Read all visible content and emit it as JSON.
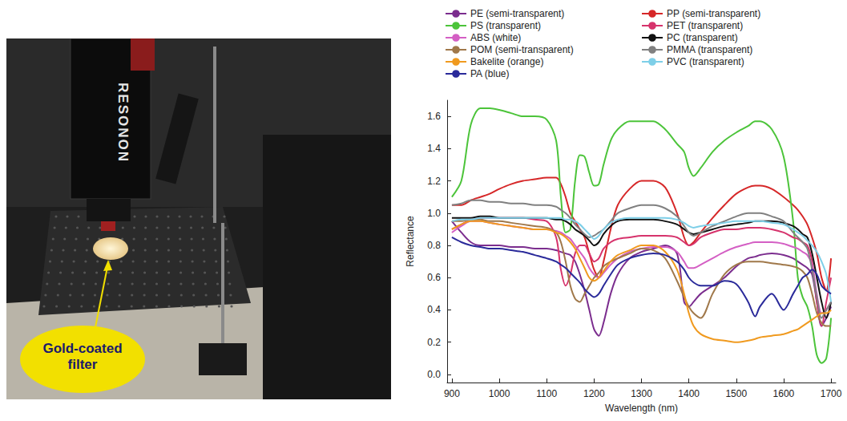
{
  "photo": {
    "camera_label": "RESONON",
    "annotation": "Gold-coated filter"
  },
  "chart_data": {
    "type": "line",
    "x_label": "Wavelength (nm)",
    "y_label": "Reflectance",
    "xlim": [
      890,
      1710
    ],
    "ylim": [
      -0.05,
      1.7
    ],
    "xticks": [
      900,
      1000,
      1100,
      1200,
      1300,
      1400,
      1500,
      1600,
      1700
    ],
    "yticks": [
      {
        "value": 0,
        "label": "0.0"
      },
      0.2,
      0.4,
      0.6,
      0.8,
      {
        "value": 1,
        "label": "1.0"
      },
      1.2,
      1.4,
      1.6
    ],
    "grid": false,
    "legend": "top",
    "x": [
      900,
      920,
      940,
      960,
      980,
      1000,
      1025,
      1050,
      1075,
      1100,
      1120,
      1130,
      1140,
      1150,
      1160,
      1170,
      1180,
      1190,
      1200,
      1210,
      1220,
      1235,
      1250,
      1275,
      1300,
      1325,
      1350,
      1375,
      1390,
      1400,
      1410,
      1425,
      1450,
      1475,
      1500,
      1525,
      1540,
      1550,
      1575,
      1600,
      1620,
      1630,
      1640,
      1650,
      1660,
      1670,
      1680,
      1690,
      1700
    ],
    "series": [
      {
        "name": "PE (semi-transparent)",
        "color": "#7b2d8e",
        "values": [
          0.95,
          0.88,
          0.82,
          0.8,
          0.8,
          0.8,
          0.79,
          0.79,
          0.78,
          0.78,
          0.77,
          0.76,
          0.75,
          0.74,
          0.7,
          0.62,
          0.52,
          0.4,
          0.28,
          0.24,
          0.32,
          0.5,
          0.62,
          0.72,
          0.76,
          0.78,
          0.8,
          0.75,
          0.45,
          0.42,
          0.45,
          0.5,
          0.55,
          0.6,
          0.67,
          0.72,
          0.73,
          0.74,
          0.75,
          0.74,
          0.72,
          0.7,
          0.68,
          0.66,
          0.62,
          0.45,
          0.3,
          0.35,
          0.42
        ]
      },
      {
        "name": "PP (semi-transparent)",
        "color": "#d62728",
        "values": [
          1.05,
          1.05,
          1.08,
          1.1,
          1.12,
          1.15,
          1.18,
          1.2,
          1.21,
          1.22,
          1.22,
          1.18,
          1.1,
          1.0,
          0.95,
          0.9,
          0.85,
          0.75,
          0.65,
          0.6,
          0.7,
          0.9,
          1.05,
          1.15,
          1.2,
          1.2,
          1.16,
          1.0,
          0.85,
          0.8,
          0.82,
          0.88,
          0.97,
          1.05,
          1.12,
          1.16,
          1.17,
          1.17,
          1.15,
          1.1,
          1.05,
          1.02,
          0.98,
          0.93,
          0.85,
          0.75,
          0.6,
          0.52,
          0.72
        ]
      },
      {
        "name": "PS (transparent)",
        "color": "#4cc43a",
        "values": [
          1.1,
          1.2,
          1.55,
          1.65,
          1.65,
          1.64,
          1.62,
          1.6,
          1.6,
          1.58,
          1.45,
          1.1,
          0.88,
          0.9,
          1.2,
          1.36,
          1.35,
          1.25,
          1.17,
          1.18,
          1.3,
          1.45,
          1.52,
          1.57,
          1.57,
          1.57,
          1.52,
          1.43,
          1.38,
          1.28,
          1.23,
          1.28,
          1.38,
          1.45,
          1.5,
          1.54,
          1.57,
          1.57,
          1.52,
          1.35,
          0.95,
          0.6,
          0.48,
          0.42,
          0.3,
          0.12,
          0.07,
          0.1,
          0.35
        ]
      },
      {
        "name": "PET (transparent)",
        "color": "#d6336c",
        "values": [
          0.9,
          0.93,
          0.96,
          0.97,
          0.97,
          0.97,
          0.97,
          0.97,
          0.96,
          0.95,
          0.85,
          0.65,
          0.55,
          0.62,
          0.75,
          0.8,
          0.8,
          0.75,
          0.7,
          0.72,
          0.78,
          0.82,
          0.84,
          0.85,
          0.86,
          0.86,
          0.86,
          0.85,
          0.82,
          0.8,
          0.81,
          0.85,
          0.88,
          0.9,
          0.9,
          0.91,
          0.91,
          0.91,
          0.9,
          0.88,
          0.85,
          0.84,
          0.82,
          0.8,
          0.7,
          0.45,
          0.3,
          0.45,
          0.6
        ]
      },
      {
        "name": "ABS (white)",
        "color": "#d45fc4",
        "values": [
          0.88,
          0.92,
          0.95,
          0.95,
          0.94,
          0.93,
          0.92,
          0.91,
          0.9,
          0.9,
          0.89,
          0.88,
          0.86,
          0.84,
          0.8,
          0.76,
          0.72,
          0.66,
          0.62,
          0.6,
          0.63,
          0.68,
          0.72,
          0.76,
          0.78,
          0.79,
          0.79,
          0.76,
          0.7,
          0.66,
          0.66,
          0.68,
          0.72,
          0.76,
          0.79,
          0.81,
          0.82,
          0.82,
          0.82,
          0.81,
          0.79,
          0.78,
          0.76,
          0.74,
          0.68,
          0.5,
          0.38,
          0.4,
          0.45
        ]
      },
      {
        "name": "PC (transparent)",
        "color": "#111111",
        "values": [
          0.97,
          0.97,
          0.97,
          0.98,
          0.98,
          0.97,
          0.97,
          0.97,
          0.97,
          0.97,
          0.96,
          0.96,
          0.95,
          0.93,
          0.9,
          0.88,
          0.86,
          0.83,
          0.8,
          0.82,
          0.87,
          0.92,
          0.95,
          0.96,
          0.96,
          0.96,
          0.95,
          0.93,
          0.9,
          0.88,
          0.87,
          0.88,
          0.9,
          0.92,
          0.93,
          0.94,
          0.95,
          0.95,
          0.95,
          0.94,
          0.92,
          0.9,
          0.87,
          0.85,
          0.75,
          0.6,
          0.45,
          0.35,
          0.45
        ]
      },
      {
        "name": "POM (semi-transparent)",
        "color": "#a0784a",
        "values": [
          0.95,
          0.95,
          0.96,
          0.96,
          0.95,
          0.95,
          0.94,
          0.93,
          0.92,
          0.91,
          0.88,
          0.82,
          0.7,
          0.55,
          0.47,
          0.45,
          0.5,
          0.55,
          0.6,
          0.63,
          0.67,
          0.7,
          0.72,
          0.75,
          0.78,
          0.77,
          0.72,
          0.58,
          0.48,
          0.42,
          0.38,
          0.35,
          0.5,
          0.62,
          0.68,
          0.7,
          0.7,
          0.7,
          0.69,
          0.68,
          0.67,
          0.66,
          0.64,
          0.6,
          0.5,
          0.38,
          0.32,
          0.3,
          0.3
        ]
      },
      {
        "name": "PMMA (transparent)",
        "color": "#808080",
        "values": [
          1.05,
          1.06,
          1.08,
          1.08,
          1.07,
          1.07,
          1.06,
          1.06,
          1.05,
          1.05,
          1.04,
          1.02,
          1.0,
          0.97,
          0.93,
          0.9,
          0.87,
          0.85,
          0.86,
          0.88,
          0.9,
          0.95,
          1.0,
          1.03,
          1.05,
          1.05,
          1.03,
          0.98,
          0.92,
          0.88,
          0.86,
          0.88,
          0.92,
          0.95,
          0.98,
          1.0,
          1.0,
          1.0,
          0.98,
          0.95,
          0.88,
          0.85,
          0.82,
          0.78,
          0.65,
          0.48,
          0.35,
          0.4,
          0.45
        ]
      },
      {
        "name": "Bakelite (orange)",
        "color": "#f09a1f",
        "values": [
          0.9,
          0.93,
          0.95,
          0.95,
          0.94,
          0.93,
          0.92,
          0.91,
          0.9,
          0.9,
          0.88,
          0.87,
          0.85,
          0.82,
          0.78,
          0.72,
          0.66,
          0.6,
          0.58,
          0.6,
          0.64,
          0.7,
          0.74,
          0.77,
          0.8,
          0.8,
          0.76,
          0.65,
          0.5,
          0.38,
          0.3,
          0.25,
          0.22,
          0.21,
          0.2,
          0.21,
          0.22,
          0.23,
          0.24,
          0.25,
          0.27,
          0.28,
          0.3,
          0.32,
          0.34,
          0.36,
          0.38,
          0.38,
          0.4
        ]
      },
      {
        "name": "PVC (transparent)",
        "color": "#7ecfe8",
        "values": [
          0.95,
          0.96,
          0.96,
          0.97,
          0.97,
          0.97,
          0.97,
          0.97,
          0.97,
          0.97,
          0.97,
          0.97,
          0.96,
          0.96,
          0.95,
          0.93,
          0.9,
          0.87,
          0.84,
          0.86,
          0.9,
          0.94,
          0.96,
          0.97,
          0.97,
          0.97,
          0.97,
          0.96,
          0.94,
          0.92,
          0.91,
          0.92,
          0.93,
          0.94,
          0.95,
          0.95,
          0.95,
          0.95,
          0.94,
          0.93,
          0.9,
          0.88,
          0.86,
          0.83,
          0.8,
          0.76,
          0.7,
          0.62,
          0.45
        ]
      },
      {
        "name": "PA (blue)",
        "color": "#2a2a9a",
        "values": [
          0.85,
          0.82,
          0.8,
          0.79,
          0.78,
          0.78,
          0.77,
          0.76,
          0.74,
          0.72,
          0.7,
          0.68,
          0.66,
          0.63,
          0.6,
          0.57,
          0.53,
          0.5,
          0.48,
          0.5,
          0.55,
          0.62,
          0.68,
          0.72,
          0.74,
          0.75,
          0.74,
          0.7,
          0.65,
          0.6,
          0.57,
          0.55,
          0.55,
          0.58,
          0.56,
          0.45,
          0.36,
          0.42,
          0.5,
          0.4,
          0.5,
          0.55,
          0.6,
          0.62,
          0.65,
          0.62,
          0.55,
          0.52,
          0.5
        ]
      }
    ]
  }
}
